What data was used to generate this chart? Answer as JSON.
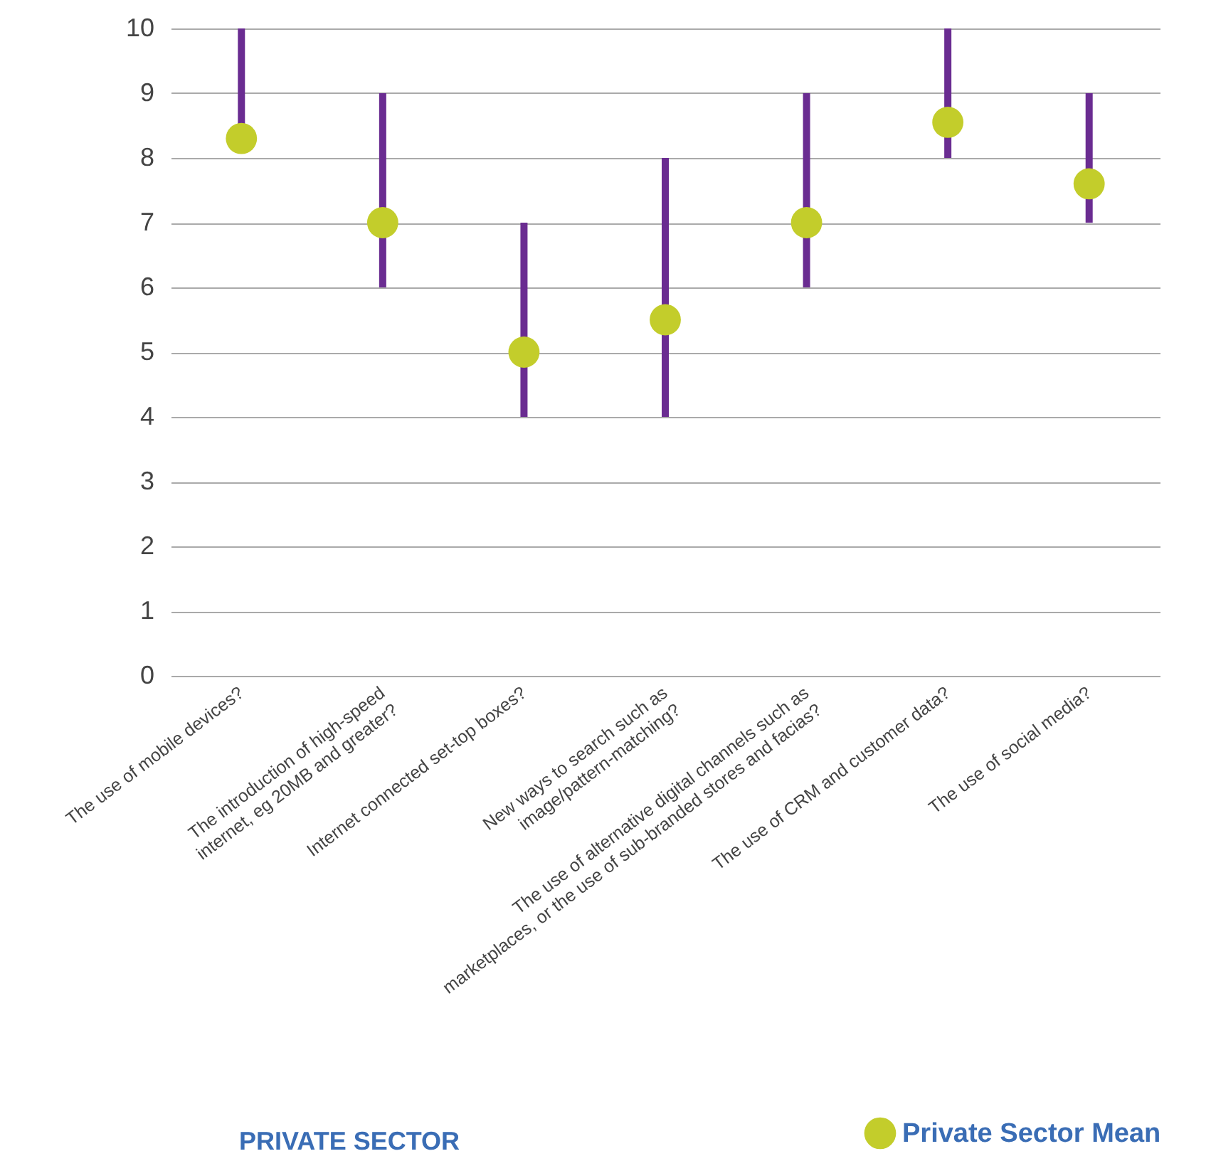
{
  "chart_data": {
    "type": "bar",
    "title": "PRIVATE SECTOR",
    "categories": [
      "The use of mobile devices?",
      "The introduction of high-speed internet, eg 20MB and greater?",
      "Internet connected set-top boxes?",
      "New ways to search such as image/pattern-matching?",
      "The use of alternative digital channels such as marketplaces, or the use of sub-branded stores and facias?",
      "The use of CRM and customer data?",
      "The use of social media?"
    ],
    "series": [
      {
        "type": "bar",
        "color": "#6a2c91",
        "base": [
          8.3,
          6,
          4,
          4,
          6,
          8,
          7
        ],
        "values": [
          1.7,
          3,
          3,
          4,
          3,
          2,
          2
        ]
      },
      {
        "type": "scatter",
        "name": "Private Sector Mean",
        "color": "#c3cd2b",
        "values": [
          8.3,
          7.0,
          5.0,
          5.5,
          7.0,
          8.55,
          7.6
        ]
      }
    ],
    "ylim": [
      0,
      10
    ],
    "yticks": [
      0,
      1,
      2,
      3,
      4,
      5,
      6,
      7,
      8,
      9,
      10
    ],
    "grid": "y",
    "legend": "bottom right",
    "marker": "circle"
  }
}
